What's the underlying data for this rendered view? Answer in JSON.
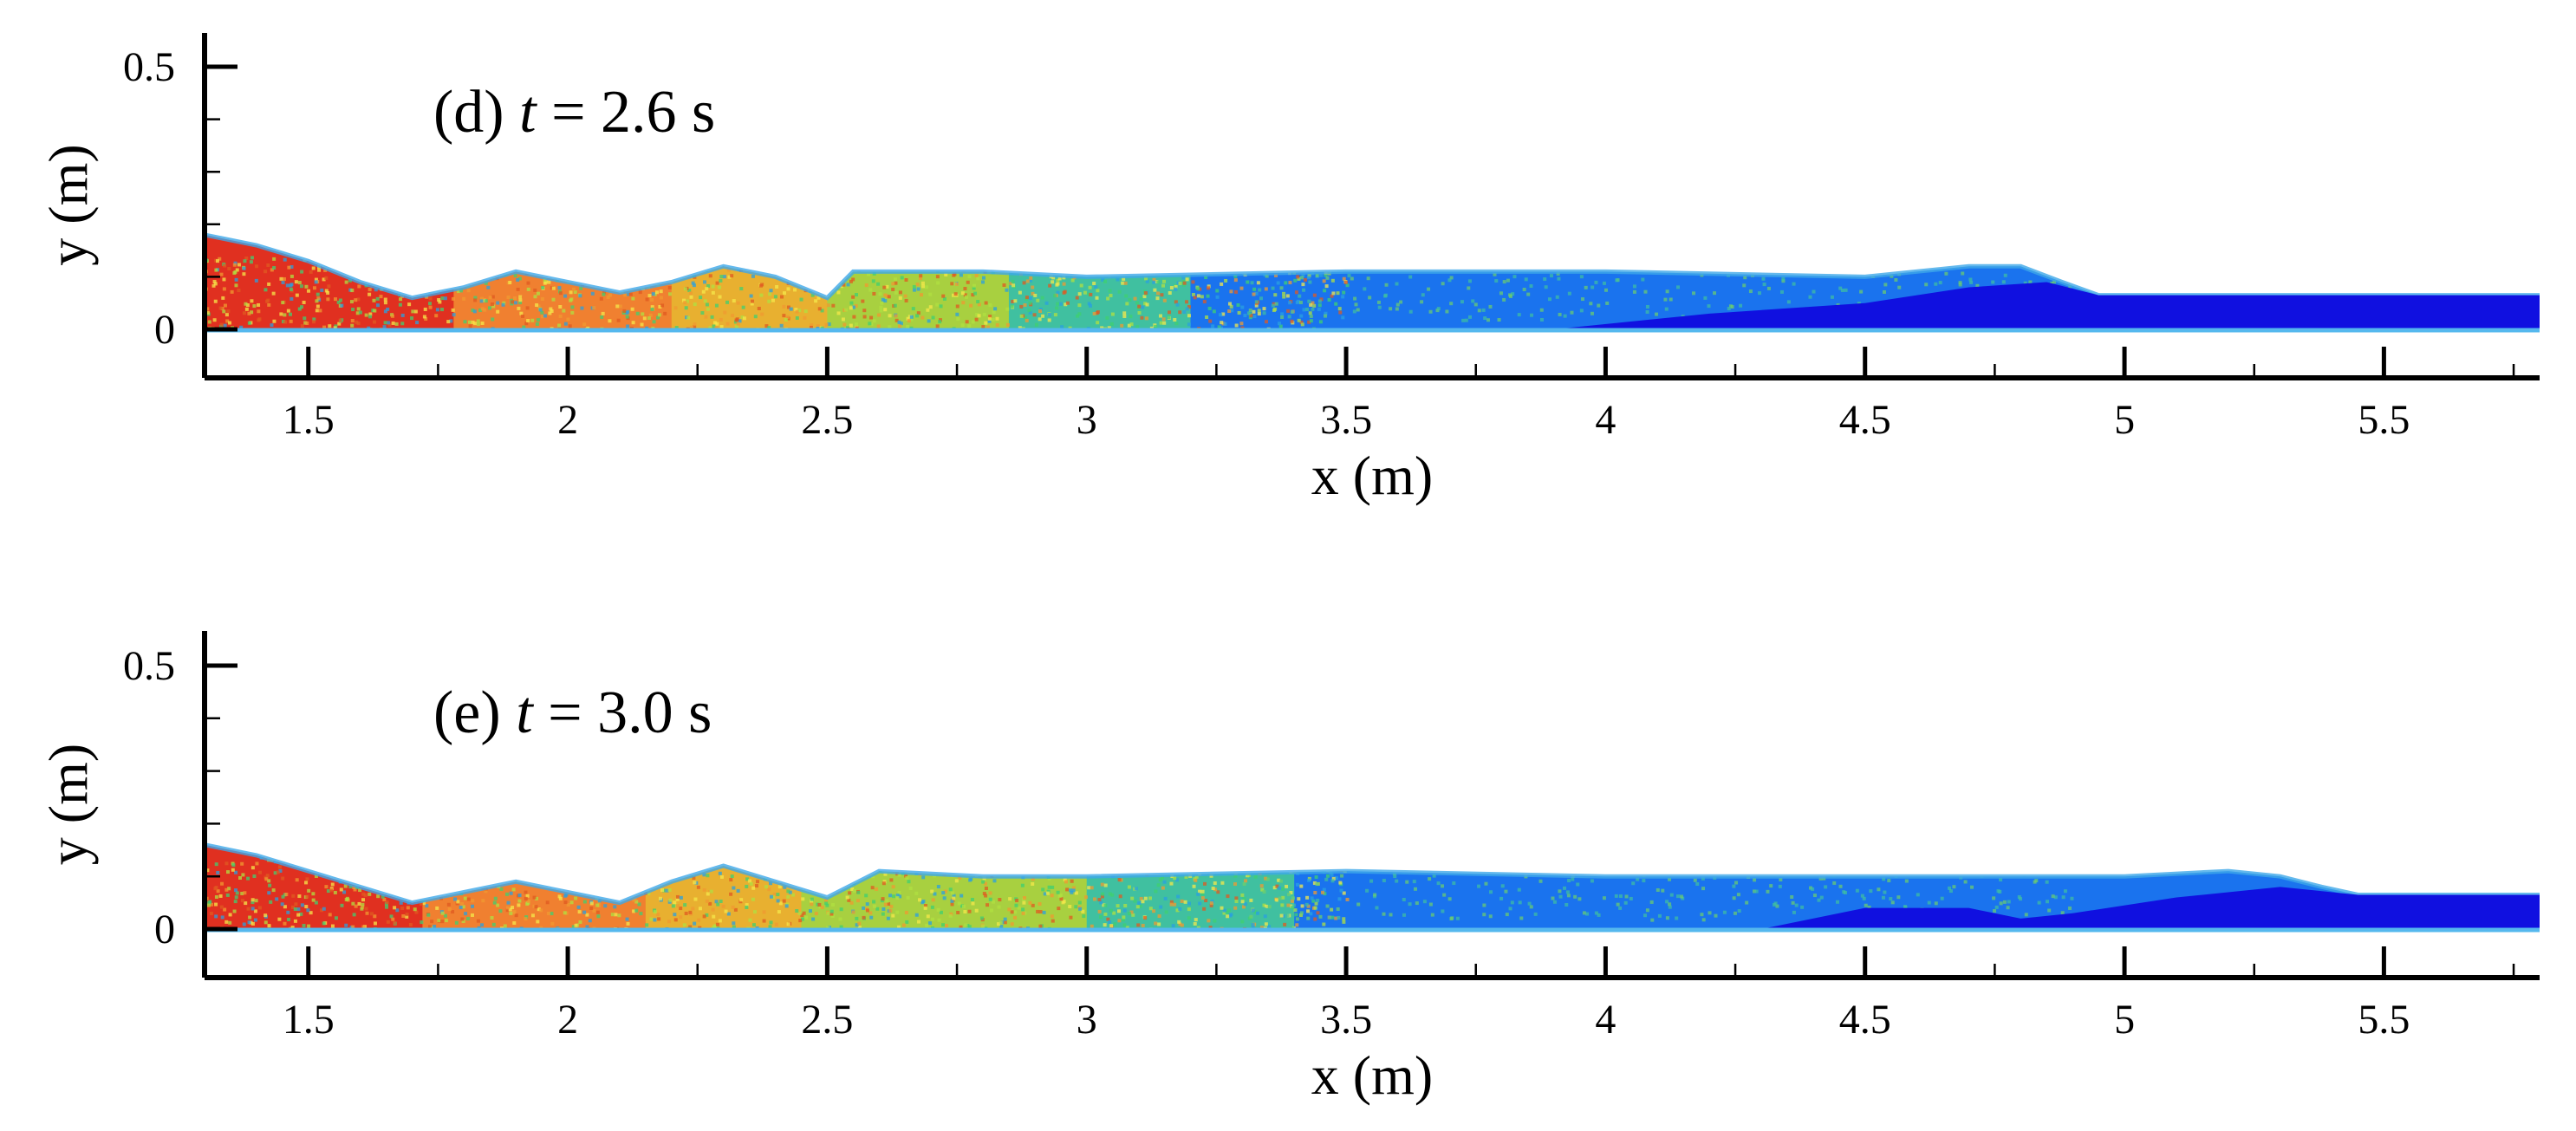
{
  "chart_data": [
    {
      "type": "area",
      "title_label": "(d)",
      "title_var": "t",
      "title_eq": "= 2.6 s",
      "xlabel": "x (m)",
      "ylabel": "y (m)",
      "xlim": [
        1.3,
        5.8
      ],
      "ylim": [
        0,
        0.55
      ],
      "xticks": [
        1.5,
        2,
        2.5,
        3,
        3.5,
        4,
        4.5,
        5,
        5.5
      ],
      "xtick_labels": [
        "1.5",
        "2",
        "2.5",
        "3",
        "3.5",
        "4",
        "4.5",
        "5",
        "5.5"
      ],
      "yticks": [
        0,
        0.5
      ],
      "ytick_labels": [
        "0",
        "0.5"
      ],
      "bed_level": 0,
      "surface": {
        "x": [
          1.3,
          1.4,
          1.5,
          1.6,
          1.7,
          1.8,
          1.9,
          2.0,
          2.1,
          2.2,
          2.3,
          2.4,
          2.5,
          2.55,
          2.6,
          2.8,
          3.0,
          3.5,
          4.0,
          4.5,
          4.7,
          4.8,
          4.88,
          4.95,
          5.2,
          5.5,
          5.8
        ],
        "y": [
          0.18,
          0.16,
          0.13,
          0.09,
          0.06,
          0.08,
          0.11,
          0.09,
          0.07,
          0.09,
          0.12,
          0.1,
          0.06,
          0.11,
          0.11,
          0.11,
          0.1,
          0.11,
          0.11,
          0.1,
          0.12,
          0.12,
          0.09,
          0.065,
          0.065,
          0.065,
          0.065
        ]
      },
      "dark_layer": {
        "x": [
          3.9,
          4.2,
          4.5,
          4.7,
          4.85,
          4.95,
          5.8
        ],
        "y": [
          0,
          0.03,
          0.05,
          0.08,
          0.09,
          0.065,
          0.065
        ]
      },
      "color_regions": [
        {
          "x": [
            1.3,
            1.78
          ],
          "color": "#e03020"
        },
        {
          "x": [
            1.78,
            2.2
          ],
          "color": "#f08030"
        },
        {
          "x": [
            2.2,
            2.5
          ],
          "color": "#e8b030"
        },
        {
          "x": [
            2.5,
            2.85
          ],
          "color": "#a8d040"
        },
        {
          "x": [
            2.85,
            3.2
          ],
          "color": "#40c0a0"
        },
        {
          "x": [
            3.2,
            5.8
          ],
          "color": "#1a73ee"
        }
      ]
    },
    {
      "type": "area",
      "title_label": "(e)",
      "title_var": "t",
      "title_eq": "= 3.0 s",
      "xlabel": "x (m)",
      "ylabel": "y (m)",
      "xlim": [
        1.3,
        5.8
      ],
      "ylim": [
        0,
        0.55
      ],
      "xticks": [
        1.5,
        2,
        2.5,
        3,
        3.5,
        4,
        4.5,
        5,
        5.5
      ],
      "xtick_labels": [
        "1.5",
        "2",
        "2.5",
        "3",
        "3.5",
        "4",
        "4.5",
        "5",
        "5.5"
      ],
      "yticks": [
        0,
        0.5
      ],
      "ytick_labels": [
        "0",
        "0.5"
      ],
      "bed_level": 0,
      "surface": {
        "x": [
          1.3,
          1.4,
          1.5,
          1.6,
          1.7,
          1.8,
          1.9,
          2.0,
          2.1,
          2.2,
          2.3,
          2.4,
          2.5,
          2.6,
          2.8,
          3.0,
          3.5,
          4.0,
          4.5,
          5.0,
          5.2,
          5.3,
          5.38,
          5.45,
          5.8
        ],
        "y": [
          0.16,
          0.14,
          0.11,
          0.08,
          0.05,
          0.07,
          0.09,
          0.07,
          0.05,
          0.09,
          0.12,
          0.09,
          0.06,
          0.11,
          0.1,
          0.1,
          0.11,
          0.1,
          0.1,
          0.1,
          0.11,
          0.1,
          0.08,
          0.065,
          0.065
        ]
      },
      "dark_layer": {
        "x": [
          4.3,
          4.5,
          4.7,
          4.8,
          4.9,
          5.1,
          5.3,
          5.4,
          5.45,
          5.8
        ],
        "y": [
          0,
          0.04,
          0.04,
          0.02,
          0.03,
          0.06,
          0.08,
          0.07,
          0.065,
          0.065
        ]
      },
      "color_regions": [
        {
          "x": [
            1.3,
            1.72
          ],
          "color": "#e03020"
        },
        {
          "x": [
            1.72,
            2.15
          ],
          "color": "#f08030"
        },
        {
          "x": [
            2.15,
            2.45
          ],
          "color": "#e8b030"
        },
        {
          "x": [
            2.45,
            3.0
          ],
          "color": "#a8d040"
        },
        {
          "x": [
            3.0,
            3.4
          ],
          "color": "#40c0a0"
        },
        {
          "x": [
            3.4,
            5.8
          ],
          "color": "#1a73ee"
        }
      ]
    }
  ]
}
